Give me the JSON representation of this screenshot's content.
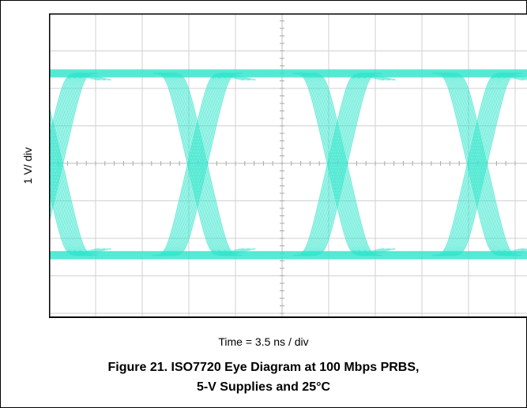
{
  "chart_data": {
    "type": "eye-diagram",
    "y_axis_label": "1 V/ div",
    "x_axis_label": "Time = 3.5 ns / div",
    "title_lines": [
      "Figure 21. ISO7720 Eye Diagram at 100 Mbps PRBS,",
      "5-V Supplies and 25°C"
    ],
    "grid": true,
    "divisions": {
      "x": 10,
      "y": 8
    },
    "scale": {
      "volts_per_div": 1,
      "ns_per_div": 3.5
    },
    "signal": {
      "high_level_div": 6.4,
      "low_level_div": 1.55,
      "unit_interval_ns": 10,
      "crossings_div": [
        0.1,
        3.2,
        6.2,
        9.2
      ]
    },
    "colors": {
      "trace": "#33e6cc",
      "grid": "#d0d0d0",
      "axis": "#000000"
    }
  }
}
